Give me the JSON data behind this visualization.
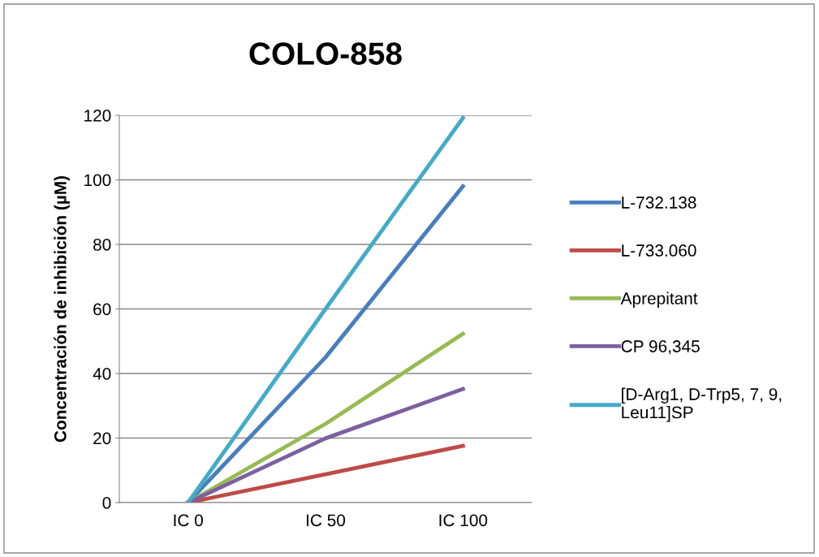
{
  "chart_data": {
    "type": "line",
    "title": "COLO-858",
    "ylabel": "Concentración de inhibición (µM)",
    "categories": [
      "IC 0",
      "IC 50",
      "IC 100"
    ],
    "series": [
      {
        "name": "L-732.138",
        "color": "#4a7ebb",
        "values": [
          0,
          45,
          98
        ]
      },
      {
        "name": "L-733.060",
        "color": "#be4b48",
        "values": [
          0,
          8.8,
          17.6
        ]
      },
      {
        "name": "Aprepitant",
        "color": "#98b954",
        "values": [
          0,
          24.4,
          52.3
        ]
      },
      {
        "name": "CP 96,345",
        "color": "#7d60a0",
        "values": [
          0,
          19.9,
          35.2
        ]
      },
      {
        "name": "[D-Arg1, D-Trp5, 7, 9,\nLeu11]SP",
        "color": "#46aac5",
        "values": [
          0,
          60,
          119.2
        ]
      }
    ],
    "ylim": [
      0,
      120
    ],
    "yticks": [
      0,
      20,
      40,
      60,
      80,
      100,
      120
    ],
    "grid": "y",
    "legend": "right",
    "marker": "none",
    "line_style": "solid"
  }
}
